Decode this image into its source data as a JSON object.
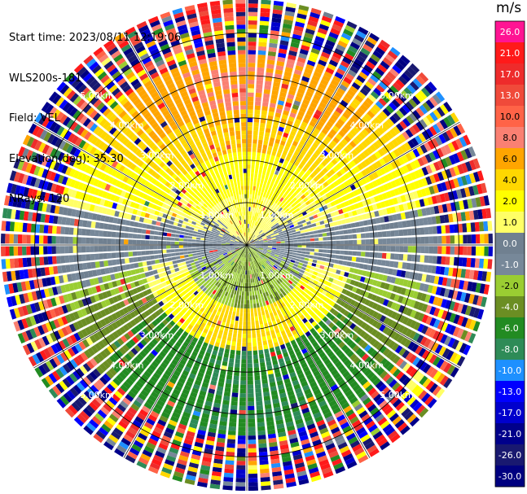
{
  "info": {
    "start_time": "Start time: 2023/08/11 12:19:06",
    "instrument": "WLS200s-181",
    "field": "Field: VEL",
    "elevation": "Elevation(deg): 35.30",
    "nrays": "NRays: 120"
  },
  "colorbar": {
    "unit": "m/s",
    "ticks": [
      "26.0",
      "21.0",
      "17.0",
      "13.0",
      "10.0",
      "8.0",
      "6.0",
      "4.0",
      "2.0",
      "1.0",
      "0.0",
      "-1.0",
      "-2.0",
      "-4.0",
      "-6.0",
      "-8.0",
      "-10.0",
      "-13.0",
      "-17.0",
      "-21.0",
      "-26.0",
      "-30.0"
    ],
    "colors": [
      "#ff1493",
      "#ff1a1a",
      "#ee2b2b",
      "#f04a3a",
      "#ff6347",
      "#fa8072",
      "#ffa500",
      "#ffd700",
      "#ffff00",
      "#ffff66",
      "#708090",
      "#778899",
      "#9acd32",
      "#6b8e23",
      "#228b22",
      "#2e8b57",
      "#1e90ff",
      "#0000ff",
      "#0000cd",
      "#00008b",
      "#191970",
      "#000080"
    ]
  },
  "chart_data": {
    "type": "ppi",
    "field": "VEL",
    "units": "m/s",
    "nrays": 120,
    "elevation_deg": 35.3,
    "range_rings_km": [
      1.0,
      2.0,
      3.0,
      4.0,
      5.0
    ],
    "range_ring_labels": [
      "1.00km",
      "2.00km",
      "3.00km",
      "4.00km",
      "5.00km"
    ],
    "max_range_km": 5.8,
    "spoke_angles_deg": [
      0,
      30,
      60,
      90,
      120,
      150,
      180,
      210,
      240,
      270,
      300,
      330
    ],
    "velocity_pattern": {
      "north_far": 8.0,
      "north_mid": 6.0,
      "north_near": 2.0,
      "east_west": 0.0,
      "south_near": -2.0,
      "south_far": -6.0,
      "noise_beyond_km": 4.5
    }
  }
}
